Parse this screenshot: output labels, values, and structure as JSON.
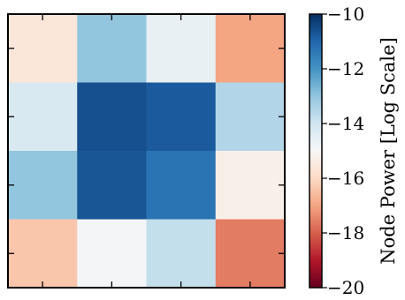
{
  "chart_data": {
    "type": "heatmap",
    "title": "",
    "xlabel": "",
    "ylabel": "",
    "rows": 4,
    "cols": 4,
    "values": [
      [
        -15.6,
        -13.0,
        -14.6,
        -17.0
      ],
      [
        -14.2,
        -10.6,
        -10.8,
        -13.5
      ],
      [
        -13.0,
        -10.7,
        -11.3,
        -15.3
      ],
      [
        -16.4,
        -14.9,
        -13.8,
        -17.6
      ]
    ],
    "colorbar": {
      "label": "Node Power [Log Scale]",
      "min": -20,
      "max": -10,
      "ticks": [
        -10,
        -12,
        -14,
        -16,
        -18,
        -20
      ],
      "tick_labels": [
        "−10",
        "−12",
        "−14",
        "−16",
        "−18",
        "−20"
      ],
      "colormap": [
        "#67001f",
        "#b2182b",
        "#d6604d",
        "#f4a582",
        "#fddbc7",
        "#f7f7f7",
        "#d1e5f0",
        "#92c5de",
        "#4393c3",
        "#2166ac",
        "#053061"
      ]
    },
    "grid": false,
    "x_tick_labels_shown": false,
    "y_tick_labels_shown": false
  }
}
